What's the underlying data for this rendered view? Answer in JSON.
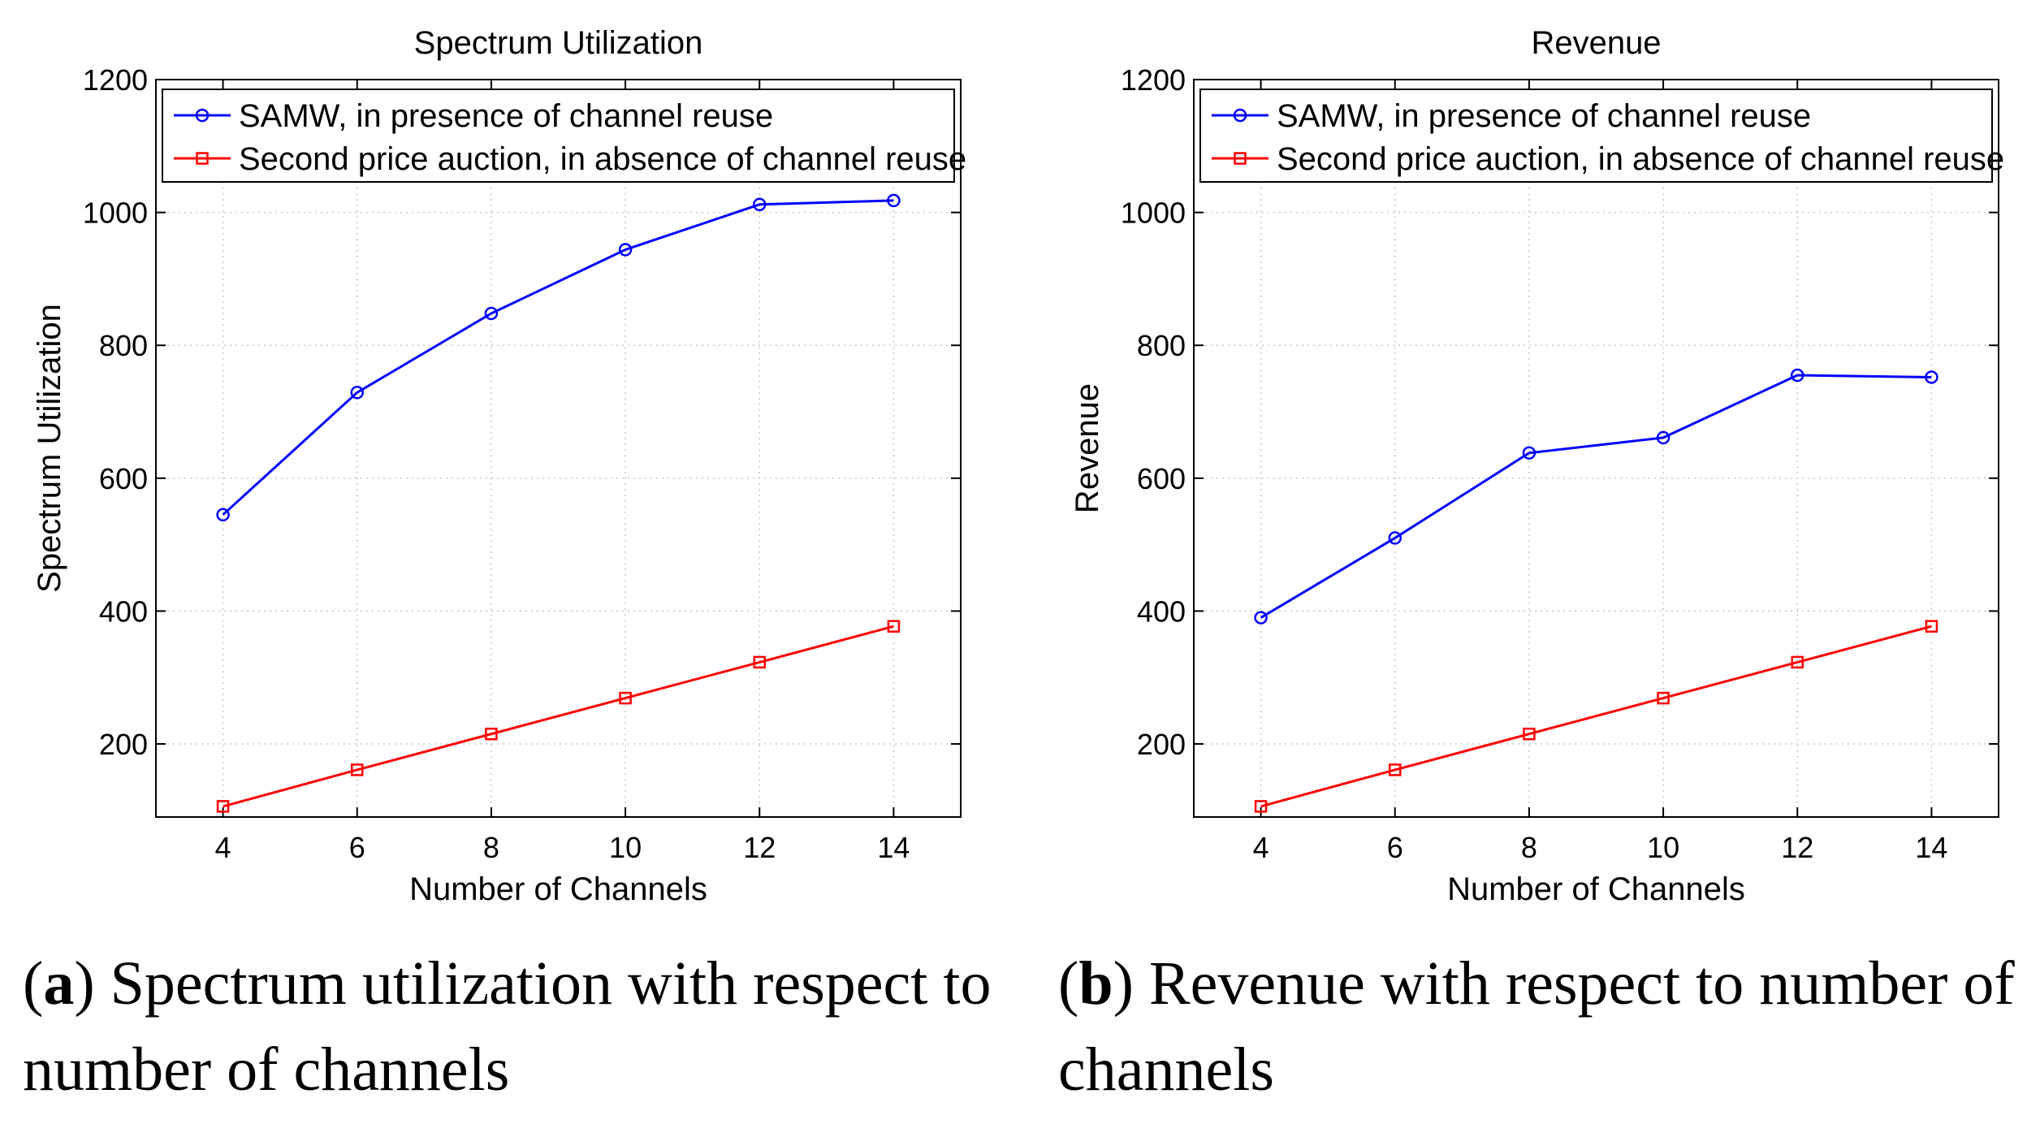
{
  "chart_data": [
    {
      "type": "line",
      "title": "Spectrum Utilization",
      "xlabel": "Number of Channels",
      "ylabel": "Spectrum Utilization",
      "x": [
        4,
        6,
        8,
        10,
        12,
        14
      ],
      "xlim": [
        3,
        15
      ],
      "ylim": [
        90,
        1200
      ],
      "xticks": [
        4,
        6,
        8,
        10,
        12,
        14
      ],
      "yticks": [
        200,
        400,
        600,
        800,
        1000,
        1200
      ],
      "grid": true,
      "legend_position": "top-left",
      "series": [
        {
          "name": "SAMW, in presence of channel reuse",
          "color": "#0000ff",
          "marker": "circle",
          "values": [
            545,
            729,
            848,
            944,
            1012,
            1018
          ]
        },
        {
          "name": "Second price auction, in absence of channel reuse",
          "color": "#ff0000",
          "marker": "square",
          "values": [
            106,
            161,
            215,
            269,
            323,
            377
          ]
        }
      ]
    },
    {
      "type": "line",
      "title": "Revenue",
      "xlabel": "Number of Channels",
      "ylabel": "Revenue",
      "x": [
        4,
        6,
        8,
        10,
        12,
        14
      ],
      "xlim": [
        3,
        15
      ],
      "ylim": [
        90,
        1200
      ],
      "xticks": [
        4,
        6,
        8,
        10,
        12,
        14
      ],
      "yticks": [
        200,
        400,
        600,
        800,
        1000,
        1200
      ],
      "grid": true,
      "legend_position": "top-left",
      "series": [
        {
          "name": "SAMW, in presence of channel reuse",
          "color": "#0000ff",
          "marker": "circle",
          "values": [
            390,
            510,
            638,
            661,
            755,
            752
          ]
        },
        {
          "name": "Second price auction, in absence of channel reuse",
          "color": "#ff0000",
          "marker": "square",
          "values": [
            106,
            161,
            215,
            269,
            323,
            377
          ]
        }
      ]
    }
  ],
  "captions": [
    {
      "letter": "a",
      "text": " Spectrum utilization with respect to number of channels"
    },
    {
      "letter": "b",
      "text": " Revenue with respect to number of channels"
    }
  ]
}
